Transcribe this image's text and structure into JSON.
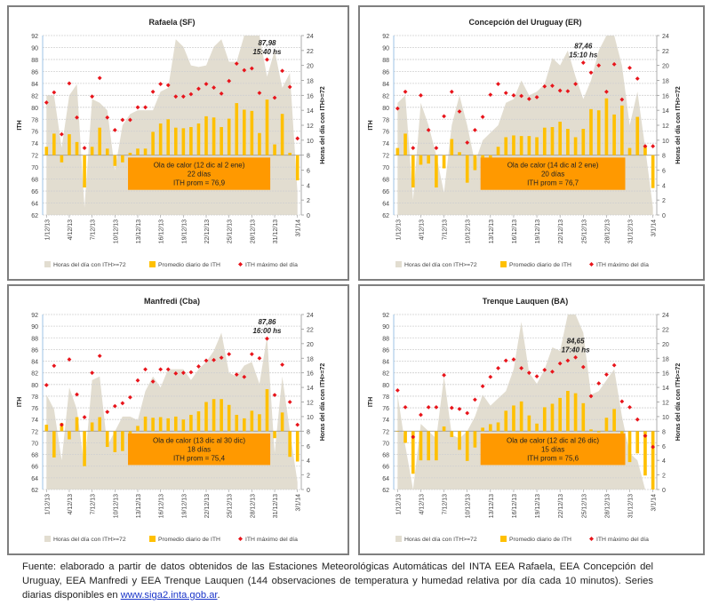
{
  "legend": {
    "area": "Horas del día con ITH>=72",
    "bars": "Promedio diario de ITH",
    "points": "ITH máximo del día"
  },
  "caption": {
    "text": "Fuente: elaborado a partir de datos obtenidos de las Estaciones Meteorológicas Automáticas del INTA EEA Rafaela, EEA Concepción del Uruguay, EEA Manfredi y EEA Trenque Lauquen (144 observaciones de temperatura y humedad relativa por día cada 10 minutos). Series diarias disponibles en ",
    "link": "www.siga2.inta.gob.ar",
    "end": "."
  },
  "colors": {
    "area": "#e2ddd0",
    "bars": "#ffc000",
    "points": "#e8141b",
    "box": "#ff9900",
    "grid": "#d0d0d0"
  },
  "chart_data": [
    {
      "type": "bar",
      "title": "Rafaela (SF)",
      "ylabel": "ITH",
      "y2label": "Horas del día con ITH>=72",
      "ylim": [
        62,
        92
      ],
      "y2lim": [
        0,
        24
      ],
      "baseline": 72,
      "yticks": [
        62,
        64,
        66,
        68,
        70,
        72,
        74,
        76,
        78,
        80,
        82,
        84,
        86,
        88,
        90,
        92
      ],
      "y2ticks": [
        0,
        2,
        4,
        6,
        8,
        10,
        12,
        14,
        16,
        18,
        20,
        22,
        24
      ],
      "x": [
        "1/12/13",
        "2/12/13",
        "3/12/13",
        "4/12/13",
        "5/12/13",
        "6/12/13",
        "7/12/13",
        "8/12/13",
        "9/12/13",
        "10/12/13",
        "11/12/13",
        "12/12/13",
        "13/12/13",
        "14/12/13",
        "15/12/13",
        "16/12/13",
        "17/12/13",
        "18/12/13",
        "19/12/13",
        "20/12/13",
        "21/12/13",
        "22/12/13",
        "23/12/13",
        "24/12/13",
        "25/12/13",
        "26/12/13",
        "27/12/13",
        "28/12/13",
        "29/12/13",
        "30/12/13",
        "31/12/13",
        "1/1/14",
        "2/1/14",
        "3/1/14"
      ],
      "xticklabels": [
        "1/12/13",
        "4/12/13",
        "7/12/13",
        "10/12/13",
        "13/12/13",
        "16/12/13",
        "19/12/13",
        "22/12/13",
        "25/12/13",
        "28/12/13",
        "31/12/13",
        "3/1/14"
      ],
      "hours": [
        16,
        16,
        9,
        16,
        17.5,
        1,
        15.5,
        15,
        14,
        6,
        12,
        13.5,
        14,
        14,
        14,
        16.5,
        17,
        23.5,
        22.5,
        20,
        19.8,
        20,
        22.5,
        23.5,
        20.5,
        20.5,
        24,
        24,
        24,
        18.5,
        22,
        17,
        19,
        3
      ],
      "avg_ith": [
        73.4,
        75.6,
        70.8,
        75.5,
        74.2,
        66.6,
        73.4,
        76.6,
        73.1,
        70.2,
        70.8,
        72.4,
        73.1,
        73.1,
        75.9,
        77.3,
        78,
        76.6,
        76.5,
        76.7,
        77.3,
        78.5,
        78.3,
        76.7,
        78.1,
        80.7,
        79.6,
        79.4,
        75.7,
        81.3,
        73.8,
        78.9,
        72.4,
        67.8
      ],
      "max_ith": [
        80.8,
        82.5,
        75.5,
        84,
        78.3,
        73.2,
        81.8,
        84.9,
        78.3,
        76.2,
        77.9,
        77.9,
        80,
        80,
        82.6,
        83.9,
        83.7,
        81.8,
        81.8,
        82.2,
        83.1,
        83.9,
        83.3,
        82.3,
        84.4,
        87.3,
        86.2,
        86.5,
        82.4,
        87.98,
        81.6,
        86.1,
        83.4,
        74.8
      ],
      "annotation": {
        "value": "87,98",
        "time": "15:40 hs",
        "index": 29
      },
      "heatwave": {
        "line1": "Ola de calor (12 dic al 2 ene)",
        "line2": "22 días",
        "line3": "ITH prom = 76,9"
      }
    },
    {
      "type": "bar",
      "title": "Concepción del Uruguay (ER)",
      "ylabel": "ITH",
      "y2label": "Horas del día con ITH>=72",
      "ylim": [
        62,
        92
      ],
      "y2lim": [
        0,
        24
      ],
      "baseline": 72,
      "yticks": [
        62,
        64,
        66,
        68,
        70,
        72,
        74,
        76,
        78,
        80,
        82,
        84,
        86,
        88,
        90,
        92
      ],
      "y2ticks": [
        0,
        2,
        4,
        6,
        8,
        10,
        12,
        14,
        16,
        18,
        20,
        22,
        24
      ],
      "x": [
        "1/12/13",
        "2/12/13",
        "3/12/13",
        "4/12/13",
        "5/12/13",
        "6/12/13",
        "7/12/13",
        "8/12/13",
        "9/12/13",
        "10/12/13",
        "11/12/13",
        "12/12/13",
        "13/12/13",
        "14/12/13",
        "15/12/13",
        "16/12/13",
        "17/12/13",
        "18/12/13",
        "19/12/13",
        "20/12/13",
        "21/12/13",
        "22/12/13",
        "23/12/13",
        "24/12/13",
        "25/12/13",
        "26/12/13",
        "27/12/13",
        "28/12/13",
        "29/12/13",
        "30/12/13",
        "31/12/13",
        "1/1/14",
        "2/1/14",
        "3/1/14"
      ],
      "xticklabels": [
        "1/12/13",
        "4/12/13",
        "7/12/13",
        "10/12/13",
        "13/12/13",
        "16/12/13",
        "19/12/13",
        "22/12/13",
        "25/12/13",
        "28/12/13",
        "31/12/13",
        "3/1/14"
      ],
      "hours": [
        15,
        16,
        2,
        15,
        12,
        8,
        3,
        12,
        16,
        12,
        7,
        10,
        11,
        12,
        15,
        15.5,
        18,
        16,
        16.5,
        17.5,
        21,
        20,
        22,
        18.5,
        15.5,
        18,
        22,
        24,
        24,
        20,
        12,
        16.5,
        9,
        1
      ],
      "avg_ith": [
        73.2,
        75.6,
        66.6,
        70.4,
        70.6,
        66.6,
        69.8,
        74.7,
        72.5,
        67.4,
        69.5,
        69.5,
        71.1,
        73.4,
        75,
        75.3,
        75.2,
        75.2,
        75,
        76.6,
        76.7,
        77.6,
        76.4,
        75,
        76.4,
        79.7,
        79.5,
        81.5,
        78.8,
        80.3,
        73.2,
        78.4,
        73.4,
        66.5
      ],
      "max_ith": [
        79.8,
        82.6,
        73.2,
        82,
        76.2,
        73.2,
        78.5,
        82.6,
        79.3,
        74.1,
        76.2,
        78.4,
        82.1,
        83.9,
        82.4,
        82,
        81.9,
        81.4,
        81.7,
        83.5,
        83.6,
        82.8,
        82.7,
        83.9,
        87.46,
        85.8,
        87,
        82.6,
        87.2,
        81.3,
        86.6,
        84.8,
        73.5,
        73.5
      ],
      "annotation": {
        "value": "87,46",
        "time": "15:10 hs",
        "index": 24
      },
      "heatwave": {
        "line1": "Ola de calor (14 dic al 2 ene)",
        "line2": "20 días",
        "line3": "ITH prom = 76,7"
      }
    },
    {
      "type": "bar",
      "title": "Manfredi (Cba)",
      "ylabel": "ITH",
      "y2label": "Horas del día con ITH>=72",
      "ylim": [
        62,
        92
      ],
      "y2lim": [
        0,
        24
      ],
      "baseline": 72,
      "yticks": [
        62,
        64,
        66,
        68,
        70,
        72,
        74,
        76,
        78,
        80,
        82,
        84,
        86,
        88,
        90,
        92
      ],
      "y2ticks": [
        0,
        2,
        4,
        6,
        8,
        10,
        12,
        14,
        16,
        18,
        20,
        22,
        24
      ],
      "x": [
        "1/12/13",
        "2/12/13",
        "3/12/13",
        "4/12/13",
        "5/12/13",
        "6/12/13",
        "7/12/13",
        "8/12/13",
        "9/12/13",
        "10/12/13",
        "11/12/13",
        "12/12/13",
        "13/12/13",
        "14/12/13",
        "15/12/13",
        "16/12/13",
        "17/12/13",
        "18/12/13",
        "19/12/13",
        "20/12/13",
        "21/12/13",
        "22/12/13",
        "23/12/13",
        "24/12/13",
        "25/12/13",
        "26/12/13",
        "27/12/13",
        "28/12/13",
        "29/12/13",
        "30/12/13",
        "31/12/13",
        "1/1/14",
        "2/1/14",
        "3/1/14"
      ],
      "xticklabels": [
        "1/12/13",
        "4/12/13",
        "7/12/13",
        "10/12/13",
        "13/12/13",
        "16/12/13",
        "19/12/13",
        "22/12/13",
        "25/12/13",
        "28/12/13",
        "31/12/13",
        "3/1/14"
      ],
      "hours": [
        13,
        11,
        4,
        14,
        11,
        3,
        15,
        15.5,
        6,
        8,
        10,
        10,
        9.5,
        13.5,
        15.5,
        14,
        16.5,
        16.5,
        16.5,
        15,
        16.5,
        17.5,
        19,
        21.5,
        16,
        15.5,
        17,
        17.5,
        14.5,
        21,
        5,
        15.5,
        8,
        1
      ],
      "avg_ith": [
        73.1,
        67.5,
        73.4,
        70.6,
        74.4,
        66,
        73.5,
        74.4,
        69.3,
        68.4,
        68.6,
        70,
        72.9,
        74.5,
        74.3,
        74.4,
        74.2,
        74.5,
        74,
        74.8,
        75.4,
        77,
        77.5,
        77.5,
        76.5,
        74.8,
        74.2,
        75.5,
        74.9,
        79.2,
        70.8,
        75.2,
        67.6,
        66.8
      ],
      "max_ith": [
        79.9,
        83.2,
        73.1,
        84.3,
        78.3,
        74.4,
        82,
        84.9,
        75.3,
        76.3,
        76.8,
        77.8,
        80.7,
        82.6,
        80.5,
        82.6,
        82.6,
        81.9,
        82,
        82.1,
        83.1,
        84.1,
        84.2,
        84.6,
        85.2,
        81.7,
        81.3,
        85.2,
        84.5,
        87.86,
        78.2,
        83.4,
        77,
        73.1
      ],
      "annotation": {
        "value": "87,86",
        "time": "16:00 hs",
        "index": 29
      },
      "heatwave": {
        "line1": "Ola de calor (13 dic al 30 dic)",
        "line2": "18 días",
        "line3": "ITH prom = 75,4"
      }
    },
    {
      "type": "bar",
      "title": "Trenque Lauquen (BA)",
      "ylabel": "ITH",
      "y2label": "Horas del día con ITH>=72",
      "ylim": [
        62,
        92
      ],
      "y2lim": [
        0,
        24
      ],
      "baseline": 72,
      "yticks": [
        62,
        64,
        66,
        68,
        70,
        72,
        74,
        76,
        78,
        80,
        82,
        84,
        86,
        88,
        90,
        92
      ],
      "y2ticks": [
        0,
        2,
        4,
        6,
        8,
        10,
        12,
        14,
        16,
        18,
        20,
        22,
        24
      ],
      "x": [
        "1/12/13",
        "2/12/13",
        "3/12/13",
        "4/12/13",
        "5/12/13",
        "6/12/13",
        "7/12/13",
        "8/12/13",
        "9/12/13",
        "10/12/13",
        "11/12/13",
        "12/12/13",
        "13/12/13",
        "14/12/13",
        "15/12/13",
        "16/12/13",
        "17/12/13",
        "18/12/13",
        "19/12/13",
        "20/12/13",
        "21/12/13",
        "22/12/13",
        "23/12/13",
        "24/12/13",
        "25/12/13",
        "26/12/13",
        "27/12/13",
        "28/12/13",
        "29/12/13",
        "30/12/13",
        "31/12/13",
        "1/1/14",
        "2/1/14",
        "3/1/14"
      ],
      "xticklabels": [
        "1/12/13",
        "4/12/13",
        "7/12/13",
        "10/12/13",
        "13/12/13",
        "16/12/13",
        "19/12/13",
        "22/12/13",
        "25/12/13",
        "28/12/13",
        "31/12/13",
        "3/1/14"
      ],
      "hours": [
        13,
        6,
        0,
        9,
        8,
        7,
        15.5,
        7.5,
        7,
        8,
        10,
        13,
        11.5,
        12.5,
        13.5,
        16.5,
        23,
        16,
        14.5,
        16.5,
        19.5,
        19,
        24,
        24,
        21.5,
        13,
        13.5,
        15,
        16.5,
        10,
        5,
        4,
        0,
        0
      ],
      "avg_ith": [
        72,
        70,
        64.7,
        67,
        67,
        67,
        72.8,
        71,
        68.8,
        66.9,
        69.2,
        72.6,
        73.2,
        73.5,
        75.5,
        76.4,
        77.1,
        74.7,
        73.3,
        76.1,
        76.7,
        77.7,
        78.9,
        78.5,
        76.8,
        72.3,
        71.8,
        74.3,
        75.8,
        71.6,
        66.7,
        68.2,
        64.4,
        62
      ],
      "max_ith": [
        79,
        76.1,
        71,
        74.8,
        76.1,
        76.1,
        81.6,
        76,
        75.8,
        75.1,
        77.4,
        79.7,
        81.3,
        82.8,
        84.1,
        84.3,
        82.8,
        82,
        81.4,
        82.5,
        82.2,
        83.6,
        84.1,
        84.65,
        83,
        78,
        80.2,
        81.7,
        83.3,
        77.1,
        76.1,
        74,
        71.2,
        69.3
      ],
      "annotation": {
        "value": "84,65",
        "time": "17:40 hs",
        "index": 23
      },
      "heatwave": {
        "line1": "Ola de calor (12 dic al 26 dic)",
        "line2": "15 días",
        "line3": "ITH prom = 75,6"
      }
    }
  ]
}
